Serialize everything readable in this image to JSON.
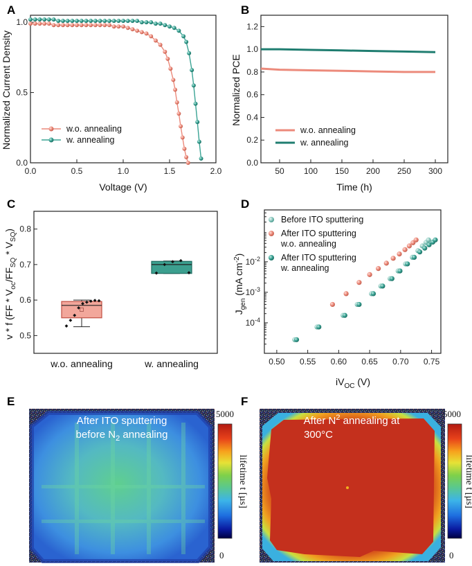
{
  "colors": {
    "salmon": "#ec8a7b",
    "teal": "#3aa394",
    "tealDark": "#1f7d70"
  },
  "chart_data": [
    {
      "panel": "A",
      "type": "line",
      "xlabel": "Voltage (V)",
      "ylabel": "Normalized Current Density",
      "xlim": [
        0,
        2.0
      ],
      "ylim": [
        0,
        1.05
      ],
      "xticks": [
        "0.0",
        "0.5",
        "1.0",
        "1.5",
        "2.0"
      ],
      "yticks": [
        "0.0",
        "0.5",
        "1.0"
      ],
      "series": [
        {
          "name": "w.o. annealing",
          "x": [
            0,
            0.05,
            0.1,
            0.15,
            0.2,
            0.25,
            0.3,
            0.35,
            0.4,
            0.45,
            0.5,
            0.55,
            0.6,
            0.65,
            0.7,
            0.75,
            0.8,
            0.85,
            0.9,
            0.95,
            1.0,
            1.05,
            1.1,
            1.15,
            1.2,
            1.25,
            1.3,
            1.35,
            1.4,
            1.45,
            1.48,
            1.51,
            1.54,
            1.56,
            1.58,
            1.6,
            1.62,
            1.64,
            1.66,
            1.68,
            1.7
          ],
          "y": [
            0.99,
            0.99,
            0.99,
            0.99,
            0.99,
            0.98,
            0.98,
            0.98,
            0.98,
            0.98,
            0.98,
            0.98,
            0.98,
            0.98,
            0.98,
            0.98,
            0.98,
            0.98,
            0.97,
            0.97,
            0.97,
            0.96,
            0.95,
            0.94,
            0.93,
            0.92,
            0.9,
            0.87,
            0.84,
            0.79,
            0.74,
            0.67,
            0.59,
            0.52,
            0.43,
            0.35,
            0.26,
            0.18,
            0.1,
            0.04,
            0.0
          ]
        },
        {
          "name": "w. annealing",
          "x": [
            0,
            0.05,
            0.1,
            0.15,
            0.2,
            0.25,
            0.3,
            0.35,
            0.4,
            0.45,
            0.5,
            0.55,
            0.6,
            0.65,
            0.7,
            0.75,
            0.8,
            0.85,
            0.9,
            0.95,
            1.0,
            1.05,
            1.1,
            1.15,
            1.2,
            1.25,
            1.3,
            1.35,
            1.4,
            1.45,
            1.5,
            1.55,
            1.6,
            1.65,
            1.68,
            1.71,
            1.74,
            1.76,
            1.78,
            1.8,
            1.82,
            1.84
          ],
          "y": [
            1.02,
            1.02,
            1.02,
            1.02,
            1.02,
            1.02,
            1.01,
            1.01,
            1.01,
            1.01,
            1.01,
            1.01,
            1.01,
            1.01,
            1.01,
            1.01,
            1.01,
            1.01,
            1.01,
            1.01,
            1.01,
            1.01,
            1.01,
            1.01,
            1.0,
            1.0,
            1.0,
            0.99,
            0.99,
            0.98,
            0.97,
            0.96,
            0.94,
            0.9,
            0.86,
            0.78,
            0.66,
            0.55,
            0.42,
            0.29,
            0.15,
            0.03
          ]
        }
      ],
      "legend": "bottom-left"
    },
    {
      "panel": "B",
      "type": "line",
      "xlabel": "Time (h)",
      "ylabel": "Normalized PCE",
      "xlim": [
        20,
        320
      ],
      "ylim": [
        0,
        1.3
      ],
      "xticks": [
        "50",
        "100",
        "150",
        "200",
        "250",
        "300"
      ],
      "yticks": [
        "0.0",
        "0.2",
        "0.4",
        "0.6",
        "0.8",
        "1.0",
        "1.2"
      ],
      "series": [
        {
          "name": "w.o. annealing",
          "x": [
            20,
            50,
            100,
            150,
            200,
            250,
            300
          ],
          "y": [
            0.83,
            0.82,
            0.815,
            0.81,
            0.805,
            0.8,
            0.8
          ]
        },
        {
          "name": "w. annealing",
          "x": [
            20,
            50,
            100,
            150,
            200,
            250,
            300
          ],
          "y": [
            1.0,
            1.0,
            0.995,
            0.99,
            0.985,
            0.98,
            0.975
          ]
        }
      ],
      "legend": "bottom-center"
    },
    {
      "panel": "C",
      "type": "box",
      "ylabel": "v * f (FF * Voc/FFSQ * VSQ)",
      "ylim": [
        0.45,
        0.85
      ],
      "yticks": [
        "0.5",
        "0.6",
        "0.7",
        "0.8"
      ],
      "categories": [
        "w.o. annealing",
        "w. annealing"
      ],
      "boxes": [
        {
          "min": 0.525,
          "q1": 0.55,
          "median": 0.585,
          "q3": 0.596,
          "max": 0.6,
          "mean": 0.573,
          "points": [
            0.527,
            0.543,
            0.557,
            0.578,
            0.59,
            0.594,
            0.597,
            0.599,
            0.598
          ]
        },
        {
          "min": 0.675,
          "q1": 0.675,
          "median": 0.7,
          "q3": 0.709,
          "max": 0.71,
          "points": [
            0.676,
            0.7,
            0.708,
            0.711,
            0.677
          ]
        }
      ]
    },
    {
      "panel": "D",
      "type": "scatter",
      "yscale": "log",
      "xlabel": "iVOC (V)",
      "ylabel": "Jgen (mA cm-2)",
      "xlim": [
        0.48,
        0.765
      ],
      "ylim": [
        1e-05,
        0.5
      ],
      "xticks": [
        "0.50",
        "0.55",
        "0.60",
        "0.65",
        "0.70",
        "0.75"
      ],
      "series": [
        {
          "name": "Before ITO sputtering",
          "x": [
            0.529,
            0.565,
            0.607,
            0.63,
            0.653,
            0.668,
            0.683,
            0.696,
            0.708,
            0.719,
            0.728,
            0.735,
            0.741,
            0.745
          ],
          "y": [
            2.8e-05,
            7.3e-05,
            0.000175,
            0.0004,
            0.0009,
            0.0016,
            0.0028,
            0.005,
            0.0085,
            0.014,
            0.023,
            0.033,
            0.043,
            0.052
          ]
        },
        {
          "name": "After ITO sputtering w.o. annealing",
          "x": [
            0.59,
            0.612,
            0.633,
            0.65,
            0.664,
            0.677,
            0.688,
            0.698,
            0.707,
            0.714,
            0.72,
            0.725
          ],
          "y": [
            0.0004,
            0.0009,
            0.0021,
            0.0038,
            0.006,
            0.009,
            0.013,
            0.018,
            0.025,
            0.033,
            0.042,
            0.052
          ]
        },
        {
          "name": "After ITO sputtering w. annealing",
          "x": [
            0.532,
            0.568,
            0.61,
            0.633,
            0.656,
            0.671,
            0.686,
            0.699,
            0.711,
            0.722,
            0.731,
            0.739,
            0.746,
            0.752,
            0.756
          ],
          "y": [
            2.8e-05,
            7.3e-05,
            0.000175,
            0.0004,
            0.0009,
            0.0016,
            0.0028,
            0.005,
            0.0085,
            0.014,
            0.021,
            0.028,
            0.036,
            0.044,
            0.052
          ]
        }
      ],
      "legend": "top-left"
    },
    {
      "panel": "E",
      "type": "heatmap",
      "annotation_line1": "After ITO sputtering",
      "annotation_line2": "before N2 annealing",
      "colorbar": {
        "max": "5000",
        "min": "0",
        "label": "lifetime t [µs]"
      }
    },
    {
      "panel": "F",
      "type": "heatmap",
      "annotation_line1": "After N2 annealing at",
      "annotation_line2": "300°C",
      "colorbar": {
        "max": "5000",
        "min": "0",
        "label": "lifetime t [µs]"
      }
    }
  ],
  "labels": {
    "A": "A",
    "B": "B",
    "C": "C",
    "D": "D",
    "E": "E",
    "F": "F",
    "a_xlabel": "Voltage (V)",
    "a_ylabel": "Normalized Current Density",
    "b_xlabel": "Time (h)",
    "b_ylabel": "Normalized PCE",
    "c_cat1": "w.o. annealing",
    "c_cat2": "w. annealing",
    "d_xlabel_main": "iV",
    "d_xlabel_sub": "OC",
    "d_xlabel_unit": " (V)",
    "d_ylabel_main": "J",
    "d_ylabel_sub": "gen",
    "d_ylabel_unit": " (mA cm",
    "d_ylabel_exp": "-2",
    "d_ylabel_close": ")",
    "c_y1": "v * f (FF * V",
    "c_y2": "oc",
    "c_y3": "/FF",
    "c_y4": "SQ",
    "c_y5": " * V",
    "c_y6": "SQ",
    "c_y7": ")",
    "d_leg1": "Before ITO sputtering",
    "d_leg2a": "After ITO sputtering",
    "d_leg2b": "w.o. annealing",
    "d_leg3a": "After ITO sputtering",
    "d_leg3b": "w. annealing",
    "e_line1": "After ITO sputtering",
    "e_line2": "before N",
    "e_line2sub": "2",
    "e_line2end": " annealing",
    "f_line1": "After N",
    "f_line1sub": "2",
    "f_line1end": " annealing at",
    "f_line2": "300°C",
    "cbar_max": "5000",
    "cbar_min": "0",
    "cbar_label": "lifetime t [µs]"
  }
}
